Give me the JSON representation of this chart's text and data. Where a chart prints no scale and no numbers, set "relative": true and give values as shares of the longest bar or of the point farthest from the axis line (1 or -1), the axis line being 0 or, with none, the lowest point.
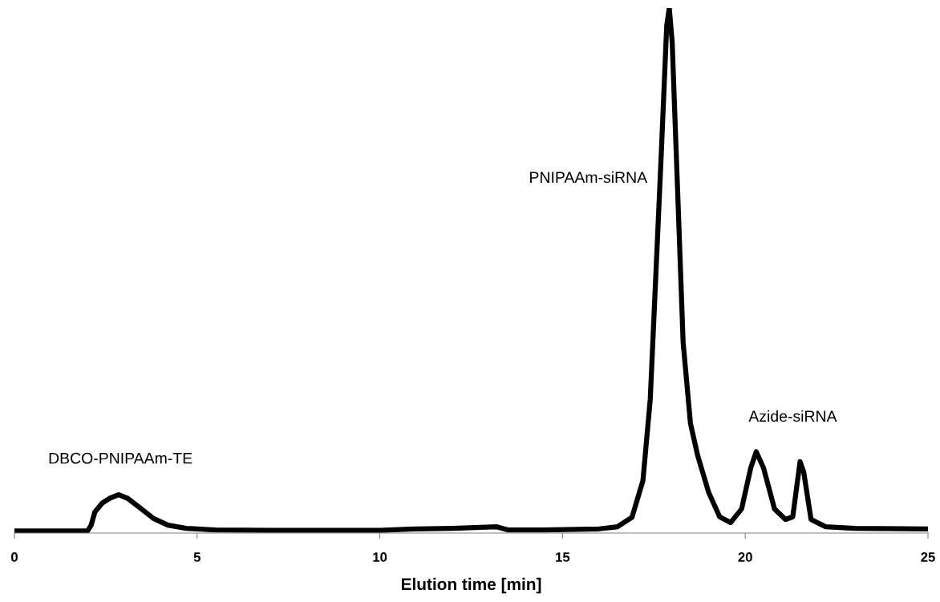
{
  "chart_data": {
    "type": "line",
    "relative": true,
    "xlabel": "Elution time [min]",
    "xlim": [
      0,
      25
    ],
    "xticks": [
      0,
      5,
      10,
      15,
      20,
      25
    ],
    "grid": false,
    "legend": false,
    "marker": "none",
    "line_style": "solid",
    "series": [
      {
        "color": "#000000",
        "x": [
          0,
          1,
          2.0,
          2.1,
          2.2,
          2.4,
          2.6,
          2.85,
          3.1,
          3.4,
          3.8,
          4.2,
          4.7,
          5.5,
          7,
          10,
          11,
          12,
          13.2,
          13.5,
          14.5,
          16,
          16.5,
          16.9,
          17.2,
          17.4,
          17.55,
          17.7,
          17.85,
          17.92,
          18.0,
          18.15,
          18.3,
          18.5,
          18.7,
          19.0,
          19.3,
          19.6,
          19.9,
          20.15,
          20.3,
          20.5,
          20.8,
          21.1,
          21.3,
          21.5,
          21.6,
          21.8,
          22.2,
          23,
          25
        ],
        "values": [
          0.004,
          0.004,
          0.004,
          0.015,
          0.04,
          0.057,
          0.066,
          0.073,
          0.066,
          0.05,
          0.028,
          0.015,
          0.009,
          0.006,
          0.005,
          0.005,
          0.008,
          0.009,
          0.012,
          0.006,
          0.006,
          0.008,
          0.012,
          0.03,
          0.1,
          0.255,
          0.487,
          0.72,
          0.966,
          1,
          0.935,
          0.65,
          0.363,
          0.209,
          0.147,
          0.077,
          0.031,
          0.02,
          0.046,
          0.124,
          0.155,
          0.124,
          0.046,
          0.026,
          0.031,
          0.136,
          0.116,
          0.026,
          0.012,
          0.009,
          0.008
        ]
      }
    ],
    "annotations": [
      "DBCO-PNIPAAm-TE",
      "PNIPAAm-siRNA",
      "Azide-siRNA"
    ]
  }
}
